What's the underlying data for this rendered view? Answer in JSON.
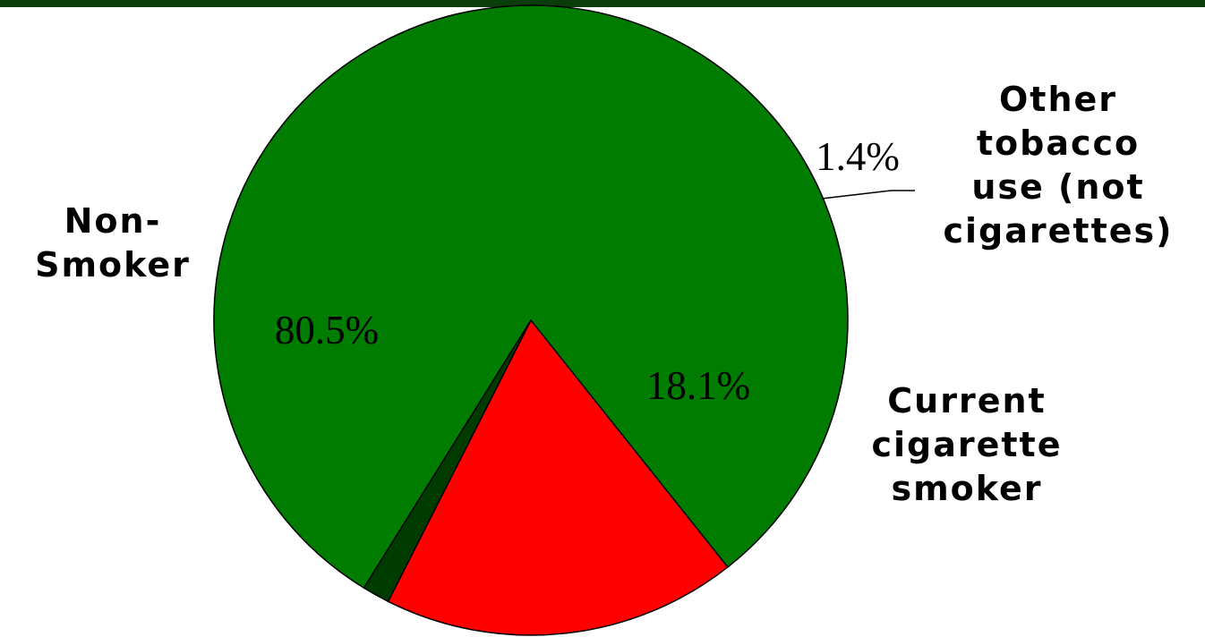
{
  "chart_data": {
    "type": "pie",
    "title": "",
    "slices": [
      {
        "label": "Non-Smoker",
        "label_lines": [
          "Non-",
          "Smoker"
        ],
        "value": 80.5,
        "value_label": "80.5%",
        "color": "#007d00"
      },
      {
        "label": "Other tobacco use (not cigarettes)",
        "label_lines": [
          "Other",
          "tobacco",
          "use (not",
          "cigarettes)"
        ],
        "value": 1.4,
        "value_label": "1.4%",
        "color": "#003c00"
      },
      {
        "label": "Current cigarette smoker",
        "label_lines": [
          "Current",
          "cigarette",
          "smoker"
        ],
        "value": 18.1,
        "value_label": "18.1%",
        "color": "#ff0000"
      }
    ],
    "legend": "none"
  },
  "theme": {
    "top_band_color": "#0b3d0b",
    "outline_color": "#000000"
  }
}
